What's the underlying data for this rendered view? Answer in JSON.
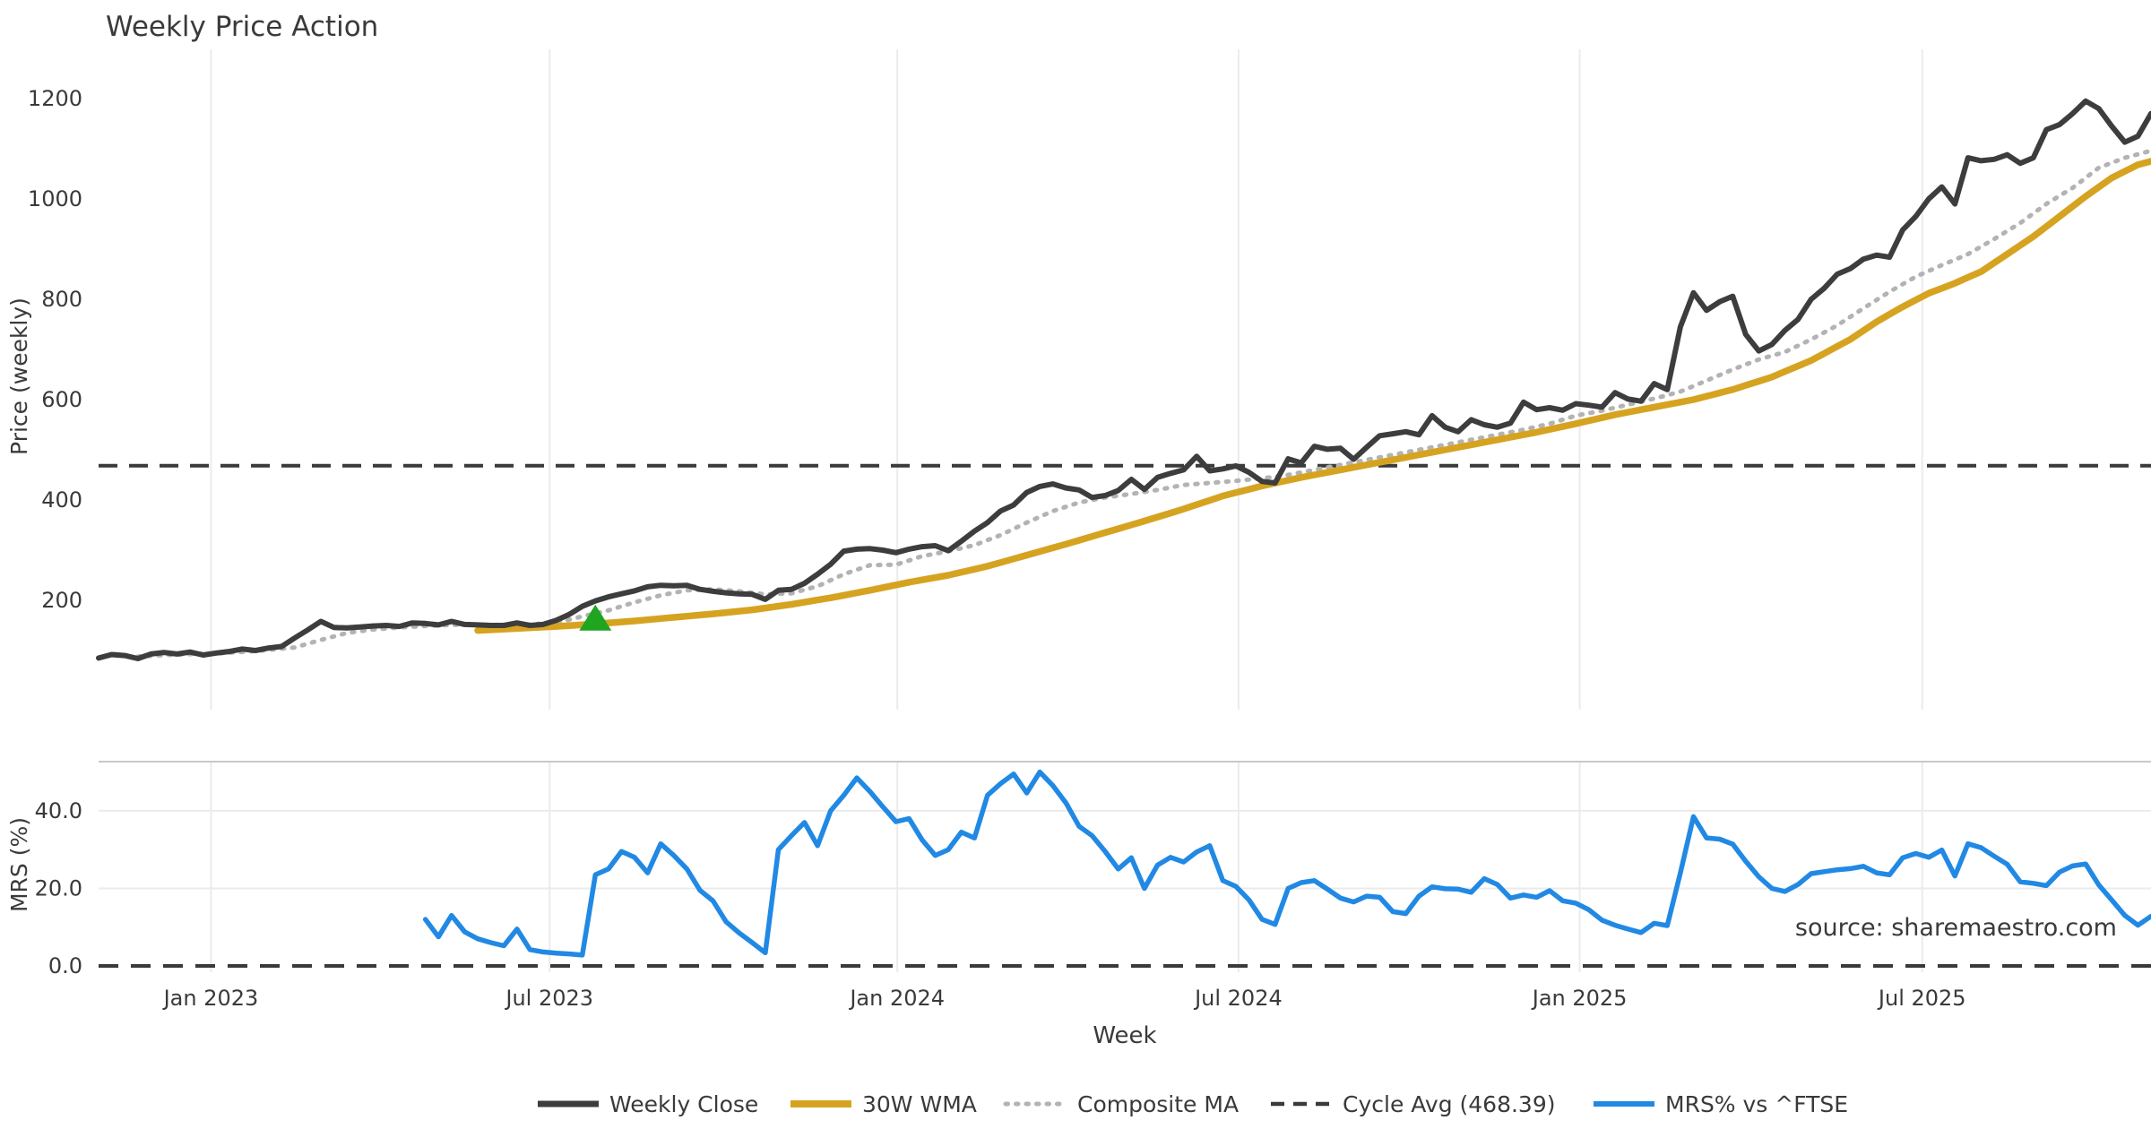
{
  "title": "Weekly Price Action",
  "source": "source: sharemaestro.com",
  "colors": {
    "close": "#3d3d3d",
    "wma": "#d6a321",
    "composite": "#b3b3b3",
    "cycle": "#3a3a3a",
    "mrs": "#2189e4",
    "marker": "#1fa51f",
    "grid": "#ebebeb",
    "spine": "#c8c8c8",
    "tick_text": "#3a3a3a",
    "muted_text": "#a0a0a0"
  },
  "price_panel": {
    "ylabel": "Price (weekly)",
    "yticks": [
      200,
      400,
      600,
      800,
      1000,
      1200
    ],
    "cycle_avg": 468.39
  },
  "mrs_panel": {
    "ylabel": "MRS (%)",
    "ytick_labels": [
      "0.0",
      "20.0",
      "40.0"
    ],
    "ytick_values": [
      0,
      20,
      40
    ],
    "grid_values": [
      20,
      40
    ]
  },
  "x_axis": {
    "label": "Week",
    "ticks": [
      {
        "week": 8.6,
        "label": "Jan 2023"
      },
      {
        "week": 34.5,
        "label": "Jul 2023"
      },
      {
        "week": 61.1,
        "label": "Jan 2024"
      },
      {
        "week": 87.2,
        "label": "Jul 2024"
      },
      {
        "week": 113.3,
        "label": "Jan 2025"
      },
      {
        "week": 139.5,
        "label": "Jul 2025"
      }
    ]
  },
  "legend": {
    "items": [
      {
        "label": "Weekly Close",
        "color": "#3d3d3d",
        "style": "solid"
      },
      {
        "label": "30W WMA",
        "color": "#d6a321",
        "style": "solid"
      },
      {
        "label": "Composite MA",
        "color": "#b3b3b3",
        "style": "dotted"
      },
      {
        "label": "Cycle Avg (468.39)",
        "color": "#3a3a3a",
        "style": "dashed"
      },
      {
        "label": "MRS% vs ^FTSE",
        "color": "#2189e4",
        "style": "solid"
      }
    ]
  },
  "chart_data": {
    "type": "line",
    "x_unit": "week_index",
    "weeks_total": 158,
    "x_range_labels": [
      "Nov 2022",
      "Nov 2025"
    ],
    "price_ylim": [
      0,
      1290
    ],
    "mrs_ylim": [
      0,
      52.7
    ],
    "grid": "vertical-both-panels, horizontal-mrs-panel",
    "legend_position": "bottom-center",
    "cycle_avg": 468.39,
    "marker": {
      "type": "triangle-up",
      "week": 38,
      "value": 163,
      "color": "#1fa51f",
      "meaning": "buy-signal"
    },
    "series": [
      {
        "name": "Weekly Close",
        "panel": "price",
        "style": "solid",
        "start_week": 0,
        "values": [
          85,
          92,
          90,
          84,
          93,
          96,
          93,
          97,
          91,
          95,
          98,
          103,
          100,
          105,
          108,
          125,
          141,
          158,
          146,
          145,
          147,
          149,
          150,
          148,
          155,
          154,
          151,
          158,
          152,
          151,
          150,
          150,
          155,
          150,
          152,
          160,
          172,
          188,
          199,
          207,
          213,
          219,
          227,
          230,
          229,
          230,
          222,
          218,
          215,
          213,
          212,
          202,
          220,
          222,
          234,
          252,
          272,
          298,
          302,
          303,
          300,
          295,
          302,
          307,
          309,
          299,
          318,
          338,
          355,
          378,
          390,
          415,
          427,
          432,
          424,
          420,
          405,
          409,
          419,
          441,
          421,
          445,
          453,
          460,
          487,
          458,
          462,
          468,
          455,
          437,
          434,
          482,
          474,
          507,
          501,
          503,
          481,
          505,
          528,
          532,
          536,
          530,
          568,
          545,
          536,
          560,
          550,
          545,
          553,
          595,
          580,
          584,
          579,
          592,
          589,
          585,
          614,
          601,
          597,
          632,
          620,
          745,
          813,
          778,
          795,
          806,
          730,
          697,
          710,
          738,
          760,
          800,
          822,
          850,
          861,
          880,
          888,
          884,
          938,
          965,
          1000,
          1024,
          990,
          1082,
          1076,
          1079,
          1088,
          1071,
          1082,
          1138,
          1148,
          1170,
          1195,
          1180,
          1145,
          1113,
          1125,
          1170
        ]
      },
      {
        "name": "30W WMA",
        "panel": "price",
        "style": "solid",
        "anchors": [
          [
            29,
            140
          ],
          [
            32,
            144
          ],
          [
            35,
            148
          ],
          [
            38,
            153
          ],
          [
            41,
            159
          ],
          [
            44,
            166
          ],
          [
            47,
            173
          ],
          [
            50,
            181
          ],
          [
            53,
            192
          ],
          [
            56,
            205
          ],
          [
            59,
            220
          ],
          [
            62,
            236
          ],
          [
            65,
            250
          ],
          [
            68,
            268
          ],
          [
            71,
            290
          ],
          [
            74,
            312
          ],
          [
            77,
            335
          ],
          [
            80,
            358
          ],
          [
            83,
            382
          ],
          [
            86,
            408
          ],
          [
            89,
            428
          ],
          [
            92,
            445
          ],
          [
            95,
            460
          ],
          [
            98,
            475
          ],
          [
            101,
            490
          ],
          [
            104,
            505
          ],
          [
            107,
            520
          ],
          [
            110,
            535
          ],
          [
            113,
            552
          ],
          [
            116,
            570
          ],
          [
            119,
            585
          ],
          [
            122,
            600
          ],
          [
            125,
            620
          ],
          [
            128,
            645
          ],
          [
            131,
            678
          ],
          [
            134,
            720
          ],
          [
            136,
            755
          ],
          [
            138,
            785
          ],
          [
            140,
            812
          ],
          [
            142,
            832
          ],
          [
            144,
            855
          ],
          [
            146,
            890
          ],
          [
            148,
            925
          ],
          [
            150,
            965
          ],
          [
            152,
            1005
          ],
          [
            154,
            1042
          ],
          [
            156,
            1068
          ],
          [
            157,
            1075
          ]
        ]
      },
      {
        "name": "Composite MA",
        "panel": "price",
        "style": "dotted",
        "anchors": [
          [
            3,
            88
          ],
          [
            6,
            92
          ],
          [
            9,
            94
          ],
          [
            12,
            99
          ],
          [
            15,
            106
          ],
          [
            17,
            121
          ],
          [
            19,
            135
          ],
          [
            21,
            142
          ],
          [
            23,
            146
          ],
          [
            25,
            149
          ],
          [
            27,
            151
          ],
          [
            30,
            151
          ],
          [
            33,
            152
          ],
          [
            35,
            155
          ],
          [
            37,
            168
          ],
          [
            39,
            180
          ],
          [
            41,
            196
          ],
          [
            43,
            210
          ],
          [
            45,
            220
          ],
          [
            47,
            222
          ],
          [
            49,
            218
          ],
          [
            51,
            212
          ],
          [
            53,
            214
          ],
          [
            55,
            228
          ],
          [
            57,
            252
          ],
          [
            59,
            270
          ],
          [
            61,
            271
          ],
          [
            63,
            288
          ],
          [
            65,
            298
          ],
          [
            67,
            310
          ],
          [
            69,
            330
          ],
          [
            71,
            355
          ],
          [
            73,
            378
          ],
          [
            75,
            395
          ],
          [
            77,
            405
          ],
          [
            79,
            412
          ],
          [
            81,
            420
          ],
          [
            83,
            430
          ],
          [
            85,
            434
          ],
          [
            87,
            438
          ],
          [
            89,
            443
          ],
          [
            91,
            450
          ],
          [
            93,
            460
          ],
          [
            95,
            470
          ],
          [
            97,
            480
          ],
          [
            99,
            490
          ],
          [
            101,
            500
          ],
          [
            103,
            510
          ],
          [
            105,
            520
          ],
          [
            107,
            530
          ],
          [
            109,
            540
          ],
          [
            111,
            552
          ],
          [
            113,
            568
          ],
          [
            115,
            578
          ],
          [
            117,
            590
          ],
          [
            119,
            602
          ],
          [
            121,
            616
          ],
          [
            123,
            638
          ],
          [
            125,
            660
          ],
          [
            127,
            680
          ],
          [
            129,
            695
          ],
          [
            131,
            720
          ],
          [
            133,
            748
          ],
          [
            135,
            782
          ],
          [
            137,
            815
          ],
          [
            139,
            845
          ],
          [
            141,
            868
          ],
          [
            143,
            890
          ],
          [
            145,
            920
          ],
          [
            147,
            952
          ],
          [
            149,
            990
          ],
          [
            151,
            1022
          ],
          [
            153,
            1062
          ],
          [
            155,
            1082
          ],
          [
            157,
            1096
          ]
        ]
      },
      {
        "name": "MRS% vs ^FTSE",
        "panel": "mrs",
        "style": "solid",
        "start_week": 25,
        "values": [
          12,
          7.5,
          13,
          8.8,
          7,
          6,
          5.2,
          9.5,
          4.2,
          3.6,
          3.3,
          3.1,
          2.8,
          23.5,
          25,
          29.5,
          28,
          24,
          31.5,
          28.5,
          25,
          19.5,
          16.8,
          11.4,
          8.5,
          6,
          3.4,
          30,
          33.6,
          37,
          31,
          40,
          44,
          48.5,
          45,
          41,
          37.2,
          38,
          32.5,
          28.5,
          30,
          34.5,
          33,
          44,
          47,
          49.5,
          44.6,
          50,
          46.5,
          42,
          36,
          33.6,
          29.5,
          25,
          27.9,
          20,
          26,
          28,
          26.8,
          29.4,
          31,
          22,
          20.5,
          17,
          12,
          10.7,
          20,
          21.5,
          22,
          19.8,
          17.5,
          16.5,
          18,
          17.7,
          14,
          13.5,
          18,
          20.4,
          19.9,
          19.8,
          19,
          22.5,
          21,
          17.5,
          18.3,
          17.7,
          19.4,
          16.8,
          16.2,
          14.5,
          11.8,
          10.5,
          9.5,
          8.6,
          11,
          10.4,
          24,
          38.5,
          33,
          32.7,
          31.4,
          27,
          23,
          20,
          19.2,
          21,
          23.8,
          24.3,
          24.8,
          25.1,
          25.7,
          24,
          23.5,
          27.9,
          29,
          28,
          29.9,
          23.2,
          31.5,
          30.5,
          28.3,
          26.2,
          21.7,
          21.3,
          20.7,
          24.2,
          25.8,
          26.3,
          20.9,
          17,
          13,
          10.5,
          12.8
        ]
      }
    ]
  }
}
